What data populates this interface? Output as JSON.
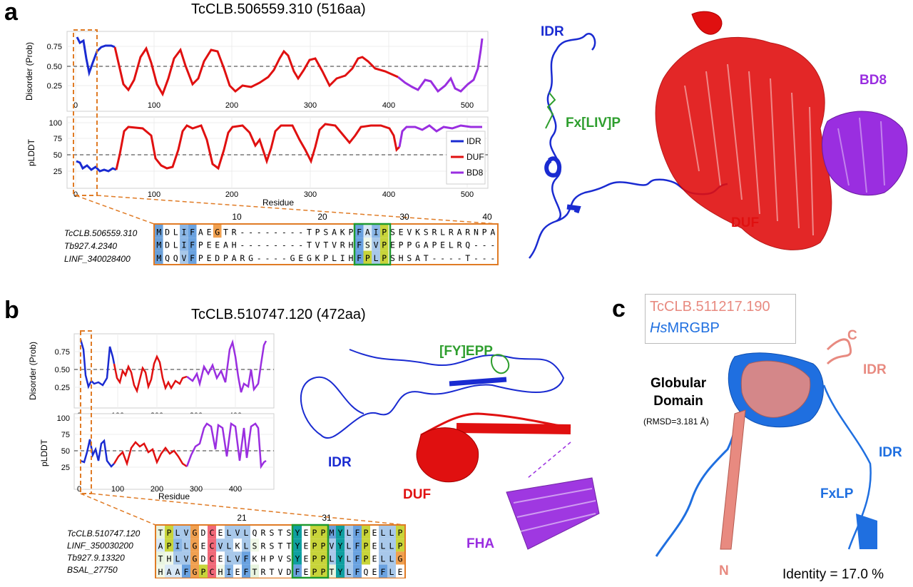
{
  "panel_a": {
    "letter": "a",
    "title": "TcCLB.506559.310 (516aa)",
    "disorder_ylabel": "Disorder (Prob)",
    "disorder_yticks": [
      "0.75",
      "0.50",
      "0.25"
    ],
    "plddt_ylabel": "pLDDT",
    "plddt_yticks": [
      "100",
      "75",
      "50",
      "25"
    ],
    "xticks": [
      "0",
      "100",
      "200",
      "300",
      "400",
      "500"
    ],
    "xlabel": "Residue",
    "legend": [
      {
        "label": "IDR",
        "color": "#1a2bd1"
      },
      {
        "label": "DUF",
        "color": "#e01010"
      },
      {
        "label": "BD8",
        "color": "#9a2ee0"
      }
    ],
    "alignment": {
      "positions": [
        "10",
        "20",
        "30",
        "40"
      ],
      "names": [
        "TcCLB.506559.310",
        "Tb927.4.2340",
        "LINF_340028400"
      ],
      "seqs": [
        "MDLIFAEGTR--------TPSAKPFAIPSEVKSRLRARNPA",
        "MDLIFPEEAH--------TVTVRHFSVPEPPGAPELRQ---",
        "MQQVFPEDPARG----GEGKPLIHFPLPSHSAT----T---"
      ]
    },
    "structure_labels": {
      "idr": "IDR",
      "motif": "Fx[LIV]P",
      "duf": "DUF",
      "bd8": "BD8"
    }
  },
  "panel_b": {
    "letter": "b",
    "title": "TcCLB.510747.120 (472aa)",
    "disorder_ylabel": "Disorder (Prob)",
    "disorder_yticks": [
      "0.75",
      "0.50",
      "0.25"
    ],
    "plddt_ylabel": "pLDDT",
    "plddt_yticks": [
      "100",
      "75",
      "50",
      "25"
    ],
    "xticks": [
      "0",
      "100",
      "200",
      "300",
      "400"
    ],
    "xlabel": "Residue",
    "alignment": {
      "positions": [
        "21",
        "31"
      ],
      "names": [
        "TcCLB.510747.120",
        "LINF_350030200",
        "Tb927.9.13320",
        "BSAL_27750"
      ],
      "seqs": [
        "TPLVGDCELVLQRSTSYEPPMYLFPELLP",
        "APILGECVLKLSRSTTYEPPVYLFPELLP",
        "THLVGDCELVFKHPVSYEPPLYLFPELLG",
        "HAAFGPCHIEFTRTVDFEPPTYLFQEFLE"
      ]
    },
    "structure_labels": {
      "motif": "[FY]EPP",
      "idr": "IDR",
      "duf": "DUF",
      "fha": "FHA"
    }
  },
  "panel_c": {
    "letter": "c",
    "legend": [
      "TcCLB.511217.190",
      "HsMRGBP"
    ],
    "legend_prefix": "Hs",
    "legend_suffix": "MRGBP",
    "globular": "Globular\nDomain",
    "globular_line1": "Globular",
    "globular_line2": "Domain",
    "rmsd": "(RMSD=3.181 Å)",
    "labels": {
      "c": "C",
      "n": "N",
      "idr1": "IDR",
      "idr2": "IDR",
      "motif": "FxLP"
    },
    "identity": "Identity = 17.0 %"
  },
  "colors": {
    "idr": "#1a2bd1",
    "duf": "#e01010",
    "bd8": "#9a2ee0",
    "motif": "#2e9e2e",
    "hs": "#1f6fe0",
    "tc": "#e88a80",
    "orange": "#e07b25"
  }
}
